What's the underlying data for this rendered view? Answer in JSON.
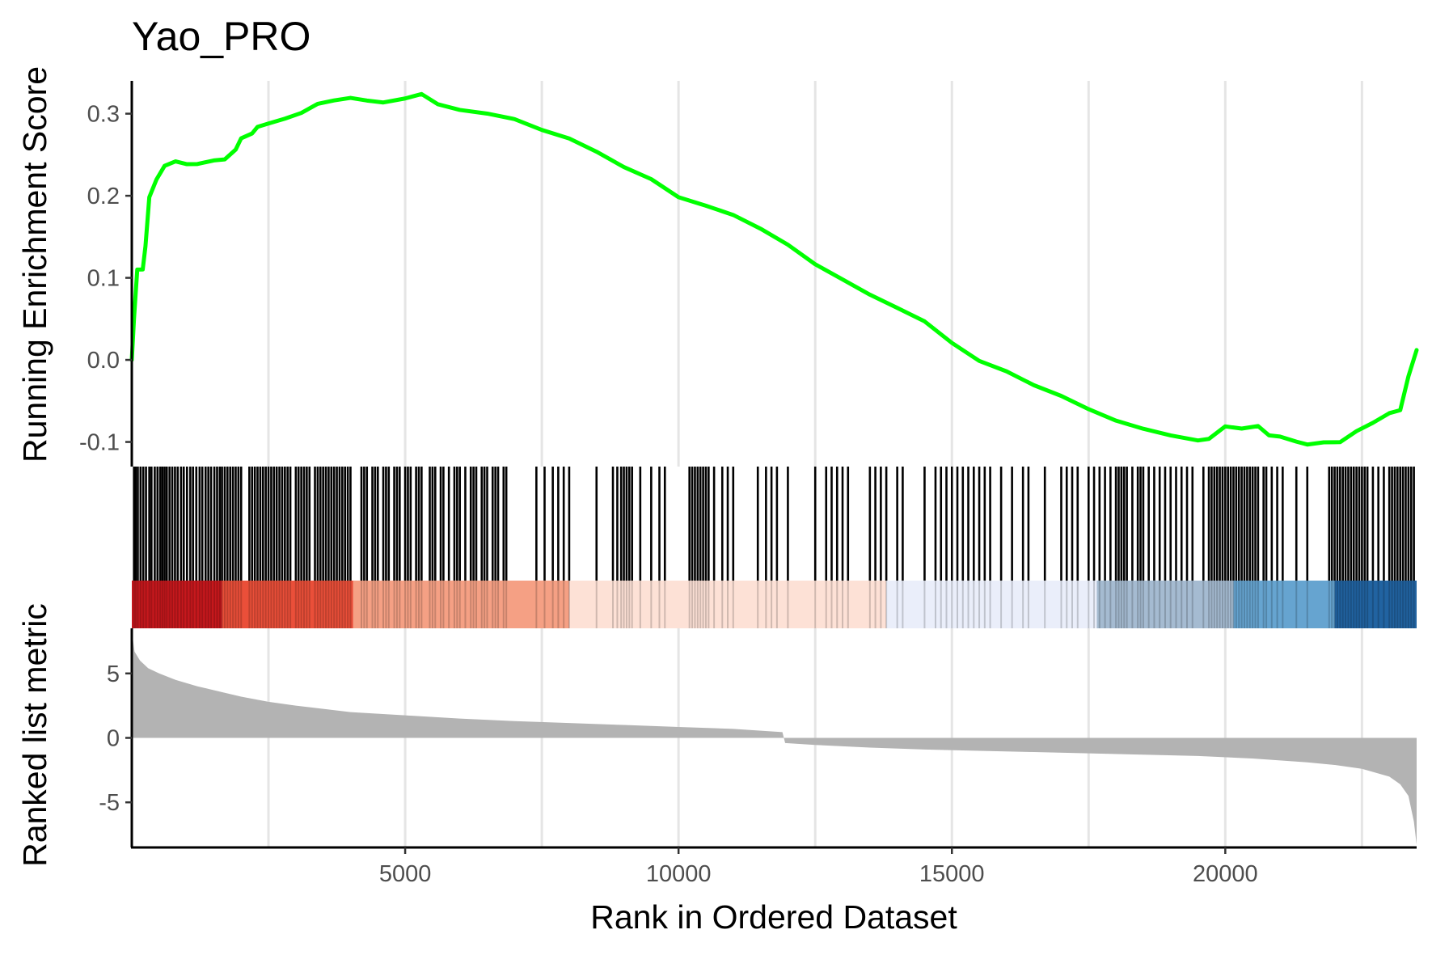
{
  "chart_data": {
    "type": "line",
    "title": "Yao_PRO",
    "xlabel": "Rank in Ordered Dataset",
    "xlim": [
      0,
      23500
    ],
    "x_ticks": [
      {
        "value": 5000,
        "label": "5000"
      },
      {
        "value": 10000,
        "label": "10000"
      },
      {
        "value": 15000,
        "label": "15000"
      },
      {
        "value": 20000,
        "label": "20000"
      }
    ],
    "vertical_gridlines": [
      2500,
      5000,
      7500,
      10000,
      12500,
      15000,
      17500,
      20000,
      22500
    ],
    "panels": [
      {
        "name": "running-enrichment-score",
        "type": "line",
        "ylabel": "Running Enrichment Score",
        "ylim": [
          -0.13,
          0.34
        ],
        "y_ticks": [
          {
            "value": -0.1,
            "label": "-0.1"
          },
          {
            "value": 0.0,
            "label": "0.0"
          },
          {
            "value": 0.1,
            "label": "0.1"
          },
          {
            "value": 0.2,
            "label": "0.2"
          },
          {
            "value": 0.3,
            "label": "0.3"
          }
        ],
        "series": [
          {
            "name": "Running Enrichment Score",
            "color": "#00ff00",
            "points": [
              [
                0,
                0.0
              ],
              [
                40,
                0.05
              ],
              [
                100,
                0.11
              ],
              [
                200,
                0.11
              ],
              [
                250,
                0.14
              ],
              [
                320,
                0.2
              ],
              [
                450,
                0.22
              ],
              [
                600,
                0.235
              ],
              [
                800,
                0.24
              ],
              [
                1000,
                0.238
              ],
              [
                1200,
                0.24
              ],
              [
                1500,
                0.245
              ],
              [
                1700,
                0.245
              ],
              [
                1900,
                0.255
              ],
              [
                2000,
                0.268
              ],
              [
                2200,
                0.275
              ],
              [
                2300,
                0.285
              ],
              [
                2500,
                0.29
              ],
              [
                2800,
                0.295
              ],
              [
                3100,
                0.3
              ],
              [
                3400,
                0.31
              ],
              [
                3700,
                0.315
              ],
              [
                4000,
                0.32
              ],
              [
                4300,
                0.318
              ],
              [
                4600,
                0.315
              ],
              [
                5000,
                0.318
              ],
              [
                5300,
                0.322
              ],
              [
                5600,
                0.31
              ],
              [
                6000,
                0.305
              ],
              [
                6500,
                0.302
              ],
              [
                7000,
                0.295
              ],
              [
                7500,
                0.28
              ],
              [
                8000,
                0.268
              ],
              [
                8500,
                0.252
              ],
              [
                9000,
                0.235
              ],
              [
                9500,
                0.222
              ],
              [
                10000,
                0.2
              ],
              [
                10500,
                0.188
              ],
              [
                11000,
                0.175
              ],
              [
                11500,
                0.158
              ],
              [
                12000,
                0.14
              ],
              [
                12500,
                0.118
              ],
              [
                13000,
                0.1
              ],
              [
                13500,
                0.08
              ],
              [
                14000,
                0.062
              ],
              [
                14500,
                0.045
              ],
              [
                15000,
                0.02
              ],
              [
                15500,
                0.0
              ],
              [
                16000,
                -0.012
              ],
              [
                16500,
                -0.03
              ],
              [
                17000,
                -0.045
              ],
              [
                17500,
                -0.062
              ],
              [
                18000,
                -0.075
              ],
              [
                18500,
                -0.083
              ],
              [
                19000,
                -0.09
              ],
              [
                19500,
                -0.097
              ],
              [
                19700,
                -0.097
              ],
              [
                20000,
                -0.083
              ],
              [
                20300,
                -0.085
              ],
              [
                20600,
                -0.08
              ],
              [
                20800,
                -0.09
              ],
              [
                21000,
                -0.092
              ],
              [
                21300,
                -0.1
              ],
              [
                21500,
                -0.105
              ],
              [
                21800,
                -0.102
              ],
              [
                22100,
                -0.1
              ],
              [
                22400,
                -0.085
              ],
              [
                22700,
                -0.075
              ],
              [
                23000,
                -0.065
              ],
              [
                23200,
                -0.063
              ],
              [
                23350,
                -0.02
              ],
              [
                23500,
                0.012
              ]
            ]
          }
        ]
      },
      {
        "name": "gene-set-hits",
        "type": "barcode",
        "description_of_marks": "positions of gene-set members in the ranked list",
        "bar_color": "#000000",
        "hits": [
          40,
          70,
          110,
          160,
          210,
          260,
          320,
          360,
          420,
          470,
          520,
          560,
          600,
          640,
          690,
          740,
          790,
          840,
          900,
          950,
          1010,
          1070,
          1120,
          1180,
          1240,
          1290,
          1350,
          1400,
          1450,
          1510,
          1560,
          1610,
          1650,
          1700,
          1750,
          1800,
          1850,
          1900,
          1950,
          2000,
          2150,
          2200,
          2250,
          2300,
          2350,
          2400,
          2450,
          2500,
          2550,
          2600,
          2650,
          2700,
          2750,
          2800,
          2850,
          2900,
          3000,
          3050,
          3100,
          3150,
          3200,
          3250,
          3350,
          3400,
          3450,
          3500,
          3550,
          3600,
          3650,
          3700,
          3750,
          3800,
          3850,
          3900,
          3950,
          4000,
          4200,
          4250,
          4300,
          4400,
          4450,
          4500,
          4600,
          4650,
          4700,
          4800,
          4850,
          4900,
          5000,
          5050,
          5100,
          5200,
          5250,
          5300,
          5450,
          5500,
          5550,
          5650,
          5700,
          5800,
          5900,
          5950,
          6000,
          6100,
          6200,
          6250,
          6300,
          6400,
          6450,
          6500,
          6600,
          6650,
          6700,
          6800,
          6850,
          7400,
          7550,
          7700,
          7800,
          7900,
          8000,
          8500,
          8800,
          8880,
          8950,
          9000,
          9050,
          9100,
          9150,
          9300,
          9500,
          9650,
          9750,
          10200,
          10250,
          10300,
          10350,
          10400,
          10450,
          10500,
          10550,
          10650,
          10800,
          10900,
          11000,
          11450,
          11600,
          11700,
          11800,
          12000,
          12500,
          12700,
          12800,
          12900,
          13000,
          13100,
          13500,
          13600,
          13700,
          13800,
          14000,
          14100,
          14500,
          14700,
          14800,
          14900,
          15000,
          15100,
          15200,
          15300,
          15400,
          15500,
          15600,
          15700,
          15900,
          16100,
          16300,
          16400,
          16700,
          17000,
          17100,
          17200,
          17300,
          17500,
          17600,
          17700,
          17800,
          17900,
          18000,
          18050,
          18100,
          18150,
          18200,
          18300,
          18400,
          18450,
          18500,
          18600,
          18700,
          18800,
          18900,
          19000,
          19100,
          19200,
          19300,
          19400,
          19600,
          19700,
          19750,
          19800,
          19850,
          19900,
          19950,
          20000,
          20050,
          20100,
          20150,
          20200,
          20250,
          20300,
          20350,
          20400,
          20450,
          20500,
          20550,
          20600,
          20700,
          20750,
          20850,
          20950,
          21050,
          21300,
          21500,
          21900,
          21950,
          22000,
          22050,
          22100,
          22150,
          22200,
          22250,
          22300,
          22350,
          22400,
          22450,
          22500,
          22550,
          22600,
          22700,
          22800,
          22900,
          23000,
          23050,
          23100,
          23150,
          23200,
          23250,
          23300,
          23350,
          23400,
          23450
        ]
      },
      {
        "name": "rank-color-band",
        "type": "heatmap",
        "segments": [
          {
            "from": 0,
            "to": 1650,
            "color": "#c7181d"
          },
          {
            "from": 1650,
            "to": 4050,
            "color": "#ea4f39"
          },
          {
            "from": 4050,
            "to": 8000,
            "color": "#f5a084"
          },
          {
            "from": 8000,
            "to": 13800,
            "color": "#fde1d6"
          },
          {
            "from": 13800,
            "to": 17650,
            "color": "#eaeefa"
          },
          {
            "from": 17650,
            "to": 20150,
            "color": "#a5bbd1"
          },
          {
            "from": 20150,
            "to": 22000,
            "color": "#66a4d0"
          },
          {
            "from": 22000,
            "to": 23500,
            "color": "#2163a1"
          }
        ],
        "overlay_lines_color": "#000000",
        "overlay_lines_opacity": 0.18
      },
      {
        "name": "ranked-list-metric",
        "type": "area",
        "ylabel": "Ranked list metric",
        "ylim": [
          -8.5,
          8.5
        ],
        "fill_color": "#b3b3b3",
        "y_ticks": [
          {
            "value": -5,
            "label": "-5"
          },
          {
            "value": 0,
            "label": "0"
          },
          {
            "value": 5,
            "label": "5"
          }
        ],
        "points": [
          [
            0,
            8.3
          ],
          [
            50,
            6.7
          ],
          [
            150,
            6.0
          ],
          [
            300,
            5.4
          ],
          [
            500,
            5.0
          ],
          [
            800,
            4.5
          ],
          [
            1200,
            4.0
          ],
          [
            1600,
            3.6
          ],
          [
            2000,
            3.2
          ],
          [
            2500,
            2.8
          ],
          [
            3000,
            2.5
          ],
          [
            4000,
            2.0
          ],
          [
            5000,
            1.75
          ],
          [
            6000,
            1.5
          ],
          [
            7000,
            1.3
          ],
          [
            8000,
            1.15
          ],
          [
            9000,
            1.0
          ],
          [
            10000,
            0.85
          ],
          [
            11000,
            0.7
          ],
          [
            11900,
            0.45
          ],
          [
            11950,
            -0.4
          ],
          [
            12500,
            -0.55
          ],
          [
            13500,
            -0.75
          ],
          [
            14500,
            -0.9
          ],
          [
            15500,
            -1.0
          ],
          [
            16500,
            -1.1
          ],
          [
            17500,
            -1.2
          ],
          [
            18500,
            -1.3
          ],
          [
            19500,
            -1.4
          ],
          [
            20500,
            -1.6
          ],
          [
            21500,
            -1.9
          ],
          [
            22000,
            -2.1
          ],
          [
            22500,
            -2.4
          ],
          [
            23000,
            -3.0
          ],
          [
            23200,
            -3.6
          ],
          [
            23350,
            -4.5
          ],
          [
            23450,
            -6.5
          ],
          [
            23500,
            -8.3
          ]
        ]
      }
    ]
  }
}
